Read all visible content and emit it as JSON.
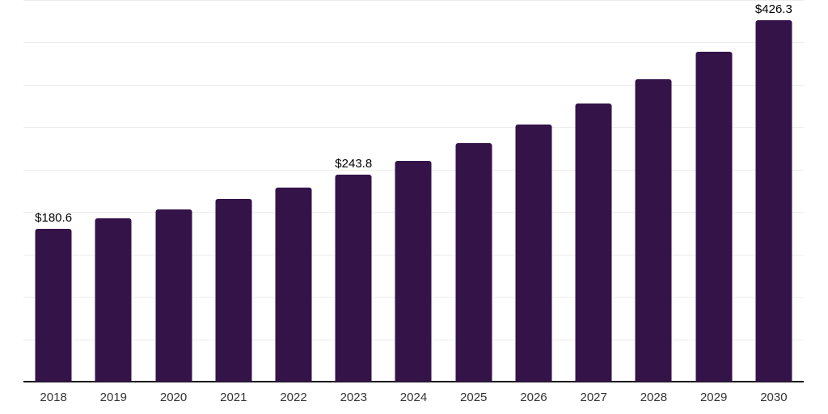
{
  "chart_data": {
    "type": "bar",
    "categories": [
      "2018",
      "2019",
      "2020",
      "2021",
      "2022",
      "2023",
      "2024",
      "2025",
      "2026",
      "2027",
      "2028",
      "2029",
      "2030"
    ],
    "values": [
      180.6,
      192.3,
      202.8,
      215.8,
      228.8,
      243.8,
      260.6,
      281.0,
      303.2,
      328.3,
      356.9,
      389.3,
      426.3
    ],
    "value_prefix": "$",
    "data_labels": [
      {
        "index": 0,
        "text": "$180.6"
      },
      {
        "index": 5,
        "text": "$243.8"
      },
      {
        "index": 12,
        "text": "$426.3"
      }
    ],
    "title": "",
    "xlabel": "",
    "ylabel": "",
    "ylim": [
      0,
      450
    ],
    "grid_step": 50,
    "grid": "horizontal",
    "legend_position": "none",
    "colors": {
      "bar": "#341349",
      "gridline": "#ededed",
      "axis_line": "#1a1a1a",
      "x_tick_label": "#333333",
      "data_label": "#000000",
      "background": "#ffffff"
    }
  }
}
